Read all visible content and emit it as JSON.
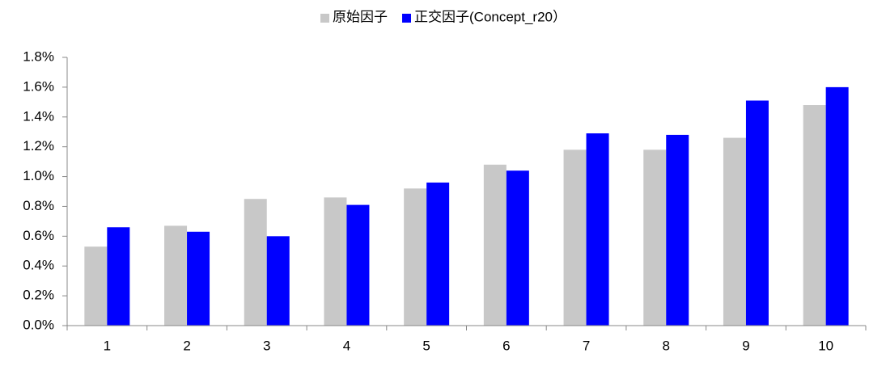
{
  "chart_data": {
    "type": "bar",
    "categories": [
      "1",
      "2",
      "3",
      "4",
      "5",
      "6",
      "7",
      "8",
      "9",
      "10"
    ],
    "series": [
      {
        "name": "原始因子",
        "color": "#c8c8c8",
        "values": [
          0.53,
          0.67,
          0.85,
          0.86,
          0.92,
          1.08,
          1.18,
          1.18,
          1.26,
          1.48
        ]
      },
      {
        "name": "正交因子(Concept_r20）",
        "color": "#0000ff",
        "values": [
          0.66,
          0.63,
          0.6,
          0.81,
          0.96,
          1.04,
          1.29,
          1.28,
          1.51,
          1.6
        ]
      }
    ],
    "ylim": [
      0,
      1.8
    ],
    "yticks": [
      {
        "value": 0,
        "label": "0.0%"
      },
      {
        "value": 0.2,
        "label": "0.2%"
      },
      {
        "value": 0.4,
        "label": "0.4%"
      },
      {
        "value": 0.6,
        "label": "0.6%"
      },
      {
        "value": 0.8,
        "label": "0.8%"
      },
      {
        "value": 1.0,
        "label": "1.0%"
      },
      {
        "value": 1.2,
        "label": "1.2%"
      },
      {
        "value": 1.4,
        "label": "1.4%"
      },
      {
        "value": 1.6,
        "label": "1.6%"
      },
      {
        "value": 1.8,
        "label": "1.8%"
      }
    ],
    "legend": "top"
  }
}
